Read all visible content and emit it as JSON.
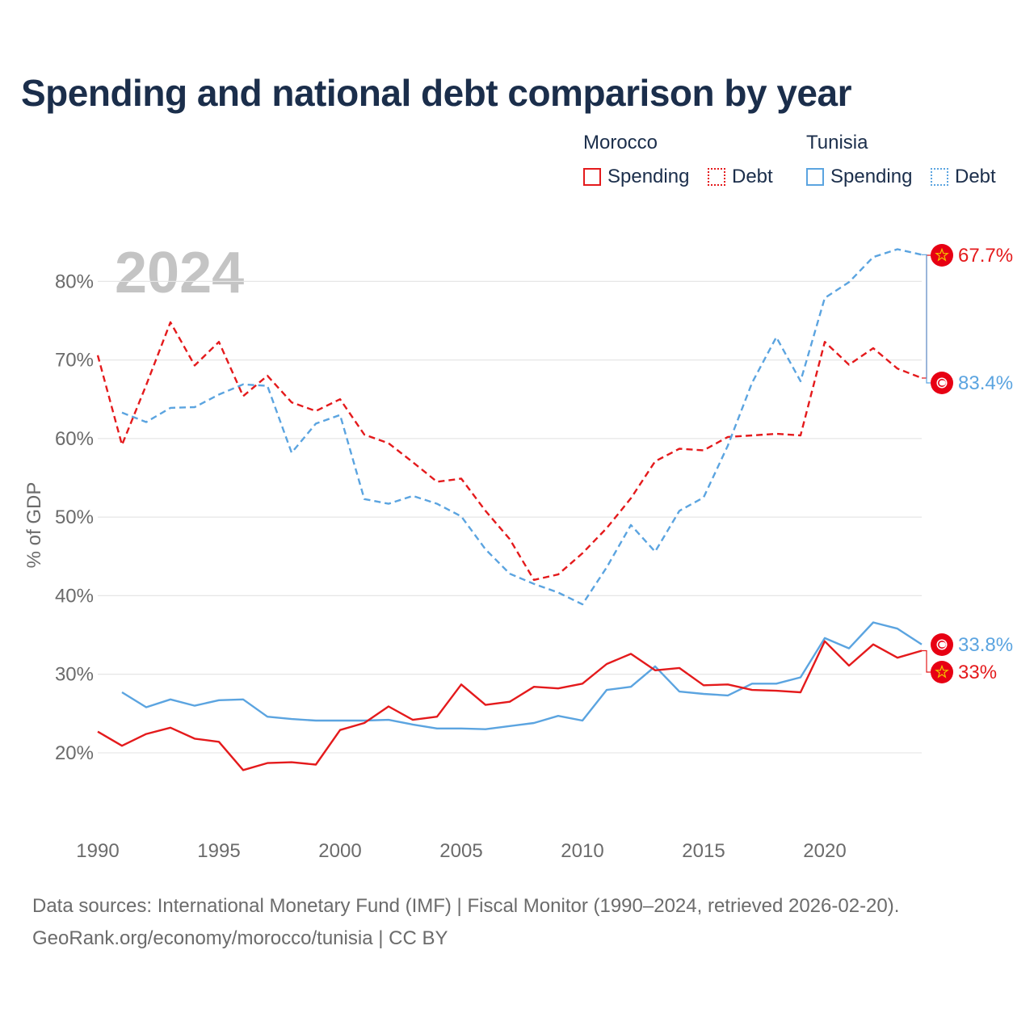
{
  "title": "Spending and national debt comparison by year",
  "legend": {
    "groups": [
      {
        "country": "Morocco",
        "items": [
          {
            "label": "Spending",
            "color": "#e41a1c",
            "style": "solid"
          },
          {
            "label": "Debt",
            "color": "#e41a1c",
            "style": "dotted"
          }
        ]
      },
      {
        "country": "Tunisia",
        "items": [
          {
            "label": "Spending",
            "color": "#5ba4e0",
            "style": "solid"
          },
          {
            "label": "Debt",
            "color": "#5ba4e0",
            "style": "dotted"
          }
        ]
      }
    ]
  },
  "footer": {
    "line1": "Data sources: International Monetary Fund (IMF) | Fiscal Monitor (1990–2024, retrieved 2026-02-20).",
    "line2": "GeoRank.org/economy/morocco/tunisia | CC BY"
  },
  "chart_data": {
    "type": "line",
    "year_watermark": "2024",
    "ylabel": "% of GDP",
    "xlabel": "",
    "xlim": [
      1990,
      2024
    ],
    "ylim": [
      13,
      86
    ],
    "x_ticks": [
      1990,
      1995,
      2000,
      2005,
      2010,
      2015,
      2020
    ],
    "y_ticks": [
      20,
      30,
      40,
      50,
      60,
      70,
      80
    ],
    "y_tick_labels": [
      "20%",
      "30%",
      "40%",
      "50%",
      "60%",
      "70%",
      "80%"
    ],
    "grid": true,
    "series": [
      {
        "name": "Morocco Debt",
        "country": "Morocco",
        "metric": "Debt",
        "color": "#e41a1c",
        "dash": true,
        "end_label": "67.7%",
        "flag": "morocco-flag",
        "points": [
          [
            1990,
            70.6
          ],
          [
            1991,
            59.2
          ],
          [
            1992,
            66.8
          ],
          [
            1993,
            74.8
          ],
          [
            1994,
            69.3
          ],
          [
            1995,
            72.3
          ],
          [
            1996,
            65.4
          ],
          [
            1997,
            68.0
          ],
          [
            1998,
            64.6
          ],
          [
            1999,
            63.5
          ],
          [
            2000,
            65.0
          ],
          [
            2001,
            60.5
          ],
          [
            2002,
            59.4
          ],
          [
            2003,
            57.0
          ],
          [
            2004,
            54.5
          ],
          [
            2005,
            54.9
          ],
          [
            2006,
            50.8
          ],
          [
            2007,
            47.2
          ],
          [
            2008,
            42.0
          ],
          [
            2009,
            42.7
          ],
          [
            2010,
            45.4
          ],
          [
            2011,
            48.6
          ],
          [
            2012,
            52.4
          ],
          [
            2013,
            57.1
          ],
          [
            2014,
            58.7
          ],
          [
            2015,
            58.5
          ],
          [
            2016,
            60.2
          ],
          [
            2017,
            60.4
          ],
          [
            2018,
            60.6
          ],
          [
            2019,
            60.4
          ],
          [
            2020,
            72.3
          ],
          [
            2021,
            69.4
          ],
          [
            2022,
            71.5
          ],
          [
            2023,
            68.9
          ],
          [
            2024,
            67.7
          ]
        ]
      },
      {
        "name": "Tunisia Debt",
        "country": "Tunisia",
        "metric": "Debt",
        "color": "#5ba4e0",
        "dash": true,
        "end_label": "83.4%",
        "flag": "tunisia-flag",
        "points": [
          [
            1991,
            63.3
          ],
          [
            1992,
            62.1
          ],
          [
            1993,
            63.9
          ],
          [
            1994,
            64.0
          ],
          [
            1995,
            65.6
          ],
          [
            1996,
            66.9
          ],
          [
            1997,
            66.7
          ],
          [
            1998,
            58.2
          ],
          [
            1999,
            61.9
          ],
          [
            2000,
            63.0
          ],
          [
            2001,
            52.3
          ],
          [
            2002,
            51.7
          ],
          [
            2003,
            52.7
          ],
          [
            2004,
            51.7
          ],
          [
            2005,
            50.1
          ],
          [
            2006,
            45.9
          ],
          [
            2007,
            42.8
          ],
          [
            2008,
            41.5
          ],
          [
            2009,
            40.4
          ],
          [
            2010,
            38.9
          ],
          [
            2011,
            43.6
          ],
          [
            2012,
            49.0
          ],
          [
            2013,
            45.6
          ],
          [
            2014,
            50.8
          ],
          [
            2015,
            52.5
          ],
          [
            2016,
            59.1
          ],
          [
            2017,
            67.1
          ],
          [
            2018,
            72.9
          ],
          [
            2019,
            67.3
          ],
          [
            2020,
            77.9
          ],
          [
            2021,
            79.9
          ],
          [
            2022,
            83.1
          ],
          [
            2023,
            84.1
          ],
          [
            2024,
            83.4
          ]
        ]
      },
      {
        "name": "Tunisia Spending",
        "country": "Tunisia",
        "metric": "Spending",
        "color": "#5ba4e0",
        "dash": false,
        "end_label": "33.8%",
        "flag": "tunisia-flag",
        "points": [
          [
            1991,
            27.7
          ],
          [
            1992,
            25.8
          ],
          [
            1993,
            26.8
          ],
          [
            1994,
            26.0
          ],
          [
            1995,
            26.7
          ],
          [
            1996,
            26.8
          ],
          [
            1997,
            24.6
          ],
          [
            1998,
            24.3
          ],
          [
            1999,
            24.1
          ],
          [
            2000,
            24.1
          ],
          [
            2001,
            24.1
          ],
          [
            2002,
            24.2
          ],
          [
            2003,
            23.6
          ],
          [
            2004,
            23.1
          ],
          [
            2005,
            23.1
          ],
          [
            2006,
            23.0
          ],
          [
            2007,
            23.4
          ],
          [
            2008,
            23.8
          ],
          [
            2009,
            24.7
          ],
          [
            2010,
            24.1
          ],
          [
            2011,
            28.0
          ],
          [
            2012,
            28.4
          ],
          [
            2013,
            31.0
          ],
          [
            2014,
            27.8
          ],
          [
            2015,
            27.5
          ],
          [
            2016,
            27.3
          ],
          [
            2017,
            28.8
          ],
          [
            2018,
            28.8
          ],
          [
            2019,
            29.6
          ],
          [
            2020,
            34.6
          ],
          [
            2021,
            33.3
          ],
          [
            2022,
            36.6
          ],
          [
            2023,
            35.8
          ],
          [
            2024,
            33.8
          ]
        ]
      },
      {
        "name": "Morocco Spending",
        "country": "Morocco",
        "metric": "Spending",
        "color": "#e41a1c",
        "dash": false,
        "end_label": "33%",
        "flag": "morocco-flag",
        "points": [
          [
            1990,
            22.7
          ],
          [
            1991,
            20.9
          ],
          [
            1992,
            22.4
          ],
          [
            1993,
            23.2
          ],
          [
            1994,
            21.8
          ],
          [
            1995,
            21.4
          ],
          [
            1996,
            17.8
          ],
          [
            1997,
            18.7
          ],
          [
            1998,
            18.8
          ],
          [
            1999,
            18.5
          ],
          [
            2000,
            22.9
          ],
          [
            2001,
            23.8
          ],
          [
            2002,
            25.9
          ],
          [
            2003,
            24.2
          ],
          [
            2004,
            24.6
          ],
          [
            2005,
            28.7
          ],
          [
            2006,
            26.1
          ],
          [
            2007,
            26.5
          ],
          [
            2008,
            28.4
          ],
          [
            2009,
            28.2
          ],
          [
            2010,
            28.8
          ],
          [
            2011,
            31.3
          ],
          [
            2012,
            32.6
          ],
          [
            2013,
            30.5
          ],
          [
            2014,
            30.8
          ],
          [
            2015,
            28.6
          ],
          [
            2016,
            28.7
          ],
          [
            2017,
            28.0
          ],
          [
            2018,
            27.9
          ],
          [
            2019,
            27.7
          ],
          [
            2020,
            34.2
          ],
          [
            2021,
            31.1
          ],
          [
            2022,
            33.8
          ],
          [
            2023,
            32.1
          ],
          [
            2024,
            33.0
          ]
        ]
      }
    ]
  }
}
